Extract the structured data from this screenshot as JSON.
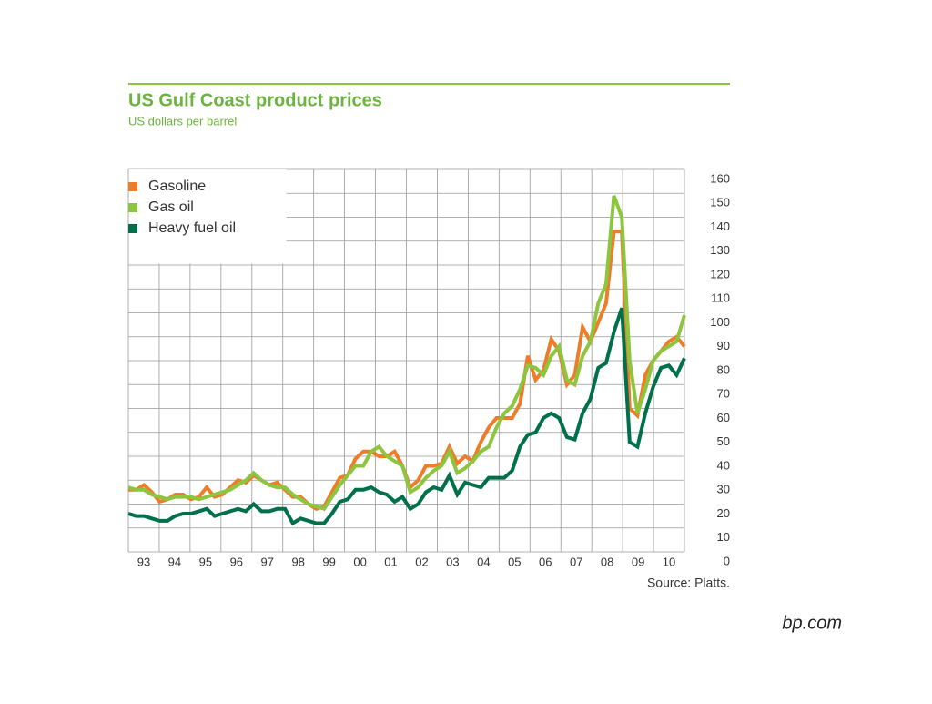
{
  "chart_data": {
    "type": "line",
    "title": "US Gulf Coast product prices",
    "subtitle": "US dollars per barrel",
    "source": "Source: Platts.",
    "brand": "bp.com",
    "categories": [
      "93",
      null,
      null,
      null,
      "94",
      null,
      null,
      null,
      "95",
      null,
      null,
      null,
      "96",
      null,
      null,
      null,
      "97",
      null,
      null,
      null,
      "98",
      null,
      null,
      null,
      "99",
      null,
      null,
      null,
      "00",
      null,
      null,
      null,
      "01",
      null,
      null,
      null,
      "02",
      null,
      null,
      null,
      "03",
      null,
      null,
      null,
      "04",
      null,
      null,
      null,
      "05",
      null,
      null,
      null,
      "06",
      null,
      null,
      null,
      "07",
      null,
      null,
      null,
      "08",
      null,
      null,
      null,
      "09",
      null,
      null,
      null,
      "10",
      null,
      null,
      null
    ],
    "series": [
      {
        "name": "Gasoline",
        "color": "#ee7d2a",
        "values": [
          26,
          26,
          28,
          25,
          21,
          22,
          24,
          24,
          22,
          23,
          27,
          23,
          24,
          27,
          30,
          29,
          32,
          30,
          28,
          29,
          26,
          23,
          23,
          20,
          18,
          19,
          25,
          31,
          32,
          39,
          42,
          42,
          40,
          40,
          42,
          36,
          27,
          30,
          36,
          36,
          37,
          44,
          37,
          40,
          38,
          46,
          52,
          56,
          56,
          56,
          62,
          82,
          72,
          76,
          89,
          84,
          70,
          74,
          94,
          88,
          96,
          104,
          134,
          134,
          60,
          57,
          74,
          80,
          84,
          88,
          90,
          86
        ]
      },
      {
        "name": "Gas oil",
        "color": "#8cc63f",
        "values": [
          27,
          26,
          26,
          24,
          23,
          22,
          23,
          23,
          23,
          22,
          23,
          24,
          25,
          26,
          28,
          30,
          33,
          30,
          28,
          27,
          27,
          24,
          22,
          20,
          19,
          18,
          23,
          28,
          32,
          36,
          36,
          42,
          44,
          40,
          38,
          36,
          25,
          27,
          31,
          34,
          36,
          42,
          33,
          35,
          38,
          42,
          44,
          52,
          58,
          61,
          68,
          78,
          77,
          74,
          82,
          86,
          72,
          70,
          82,
          88,
          104,
          112,
          149,
          140,
          80,
          58,
          68,
          80,
          84,
          86,
          88,
          99
        ]
      },
      {
        "name": "Heavy fuel oil",
        "color": "#00704a",
        "values": [
          16,
          15,
          15,
          14,
          13,
          13,
          15,
          16,
          16,
          17,
          18,
          15,
          16,
          17,
          18,
          17,
          20,
          17,
          17,
          18,
          18,
          12,
          14,
          13,
          12,
          12,
          16,
          21,
          22,
          26,
          26,
          27,
          25,
          24,
          21,
          23,
          18,
          20,
          25,
          27,
          26,
          32,
          24,
          29,
          28,
          27,
          31,
          31,
          31,
          34,
          44,
          49,
          50,
          56,
          58,
          56,
          48,
          47,
          58,
          64,
          77,
          79,
          92,
          102,
          46,
          44,
          58,
          69,
          77,
          78,
          74,
          81
        ]
      }
    ],
    "ylim": [
      0,
      160
    ],
    "yticks": [
      0,
      10,
      20,
      30,
      40,
      50,
      60,
      70,
      80,
      90,
      100,
      110,
      120,
      130,
      140,
      150,
      160
    ],
    "grid": true
  }
}
